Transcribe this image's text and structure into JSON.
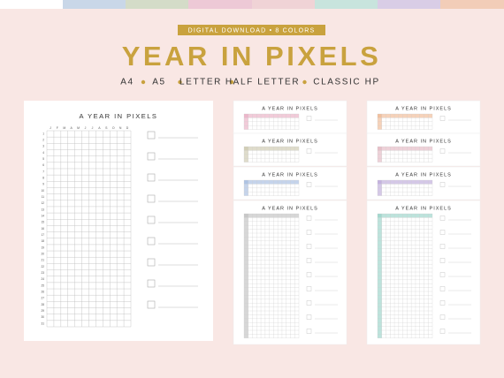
{
  "header": {
    "badge": "DIGITAL DOWNLOAD • 8 COLORS",
    "title": "YEAR IN PIXELS",
    "formats": [
      "A4",
      "A5",
      "LETTER",
      "HALF LETTER",
      "CLASSIC HP"
    ]
  },
  "main_sheet": {
    "title": "A YEAR IN PIXELS",
    "months": [
      "J",
      "F",
      "M",
      "A",
      "M",
      "J",
      "J",
      "A",
      "S",
      "O",
      "N",
      "D"
    ],
    "days": [
      "1",
      "2",
      "3",
      "4",
      "5",
      "6",
      "7",
      "8",
      "9",
      "10",
      "11",
      "12",
      "13",
      "14",
      "15",
      "16",
      "17",
      "18",
      "19",
      "20",
      "21",
      "22",
      "23",
      "24",
      "25",
      "26",
      "27",
      "28",
      "29",
      "30",
      "31"
    ]
  },
  "sheets": [
    {
      "title": "A YEAR IN PIXELS"
    },
    {
      "title": "A YEAR IN PIXELS"
    },
    {
      "title": "A YEAR IN PIXELS"
    },
    {
      "title": "A YEAR IN PIXELS"
    },
    {
      "title": "A YEAR IN PIXELS"
    },
    {
      "title": "A YEAR IN PIXELS"
    },
    {
      "title": "A YEAR IN PIXELS"
    },
    {
      "title": "A YEAR IN PIXELS"
    }
  ]
}
